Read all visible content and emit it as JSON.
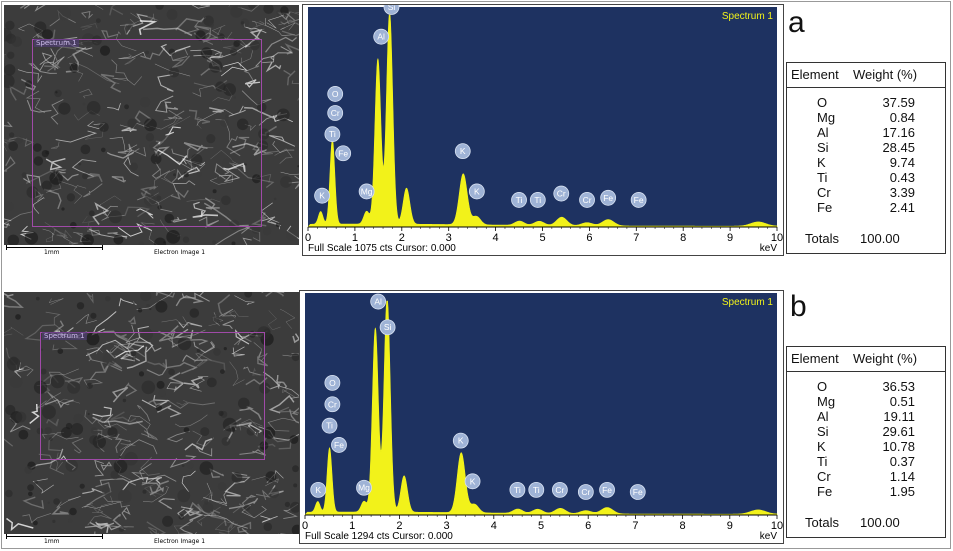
{
  "panels": [
    {
      "letter": "a",
      "roi_label": "Spectrum 1",
      "scale_label": "1mm",
      "image_label": "Electron Image 1",
      "spectrum_title": "Spectrum 1",
      "footer": "Full Scale 1075 cts Cursor: 0.000",
      "unit": "keV",
      "table": {
        "col1": "Element",
        "col2": "Weight (%)",
        "rows": [
          {
            "el": "O",
            "w": "37.59"
          },
          {
            "el": "Mg",
            "w": "0.84"
          },
          {
            "el": "Al",
            "w": "17.16"
          },
          {
            "el": "Si",
            "w": "28.45"
          },
          {
            "el": "K",
            "w": "9.74"
          },
          {
            "el": "Ti",
            "w": "0.43"
          },
          {
            "el": "Cr",
            "w": "3.39"
          },
          {
            "el": "Fe",
            "w": "2.41"
          }
        ],
        "total_label": "Totals",
        "total_value": "100.00"
      }
    },
    {
      "letter": "b",
      "roi_label": "Spectrum 1",
      "scale_label": "1mm",
      "image_label": "Electron Image 1",
      "spectrum_title": "Spectrum 1",
      "footer": "Full Scale 1294 cts Cursor: 0.000",
      "unit": "keV",
      "table": {
        "col1": "Element",
        "col2": "Weight (%)",
        "rows": [
          {
            "el": "O",
            "w": "36.53"
          },
          {
            "el": "Mg",
            "w": "0.51"
          },
          {
            "el": "Al",
            "w": "19.11"
          },
          {
            "el": "Si",
            "w": "29.61"
          },
          {
            "el": "K",
            "w": "10.78"
          },
          {
            "el": "Ti",
            "w": "0.37"
          },
          {
            "el": "Cr",
            "w": "1.14"
          },
          {
            "el": "Fe",
            "w": "1.95"
          }
        ],
        "total_label": "Totals",
        "total_value": "100.00"
      }
    }
  ],
  "colors": {
    "plot_bg": "#1e3261",
    "peak": "#f2f21a",
    "label_circle": "#9fb3d6",
    "roi": "#a04aa8"
  },
  "chart_data": [
    {
      "type": "area",
      "x_ticks": [
        "0",
        "1",
        "2",
        "3",
        "4",
        "5",
        "6",
        "7",
        "8",
        "9",
        "10"
      ],
      "xlim": [
        0,
        10
      ],
      "peaks": [
        {
          "e": 0.27,
          "h": 0.06
        },
        {
          "e": 0.52,
          "h": 0.4
        },
        {
          "e": 1.25,
          "h": 0.06
        },
        {
          "e": 1.49,
          "h": 0.78
        },
        {
          "e": 1.74,
          "h": 1.0
        },
        {
          "e": 2.1,
          "h": 0.17
        },
        {
          "e": 3.31,
          "h": 0.24
        },
        {
          "e": 3.59,
          "h": 0.04
        },
        {
          "e": 4.51,
          "h": 0.02
        },
        {
          "e": 4.93,
          "h": 0.02
        },
        {
          "e": 5.41,
          "h": 0.04
        },
        {
          "e": 5.95,
          "h": 0.015
        },
        {
          "e": 6.4,
          "h": 0.03
        },
        {
          "e": 9.6,
          "h": 0.02
        }
      ],
      "labels": [
        {
          "t": "O",
          "e": 0.58,
          "lvl": 0.59
        },
        {
          "t": "Cr",
          "e": 0.58,
          "lvl": 0.5
        },
        {
          "t": "Ti",
          "e": 0.52,
          "lvl": 0.4
        },
        {
          "t": "Fe",
          "e": 0.75,
          "lvl": 0.31
        },
        {
          "t": "K",
          "e": 0.3,
          "lvl": 0.11
        },
        {
          "t": "Mg",
          "e": 1.25,
          "lvl": 0.13
        },
        {
          "t": "Al",
          "e": 1.56,
          "lvl": 0.86
        },
        {
          "t": "Si",
          "e": 1.78,
          "lvl": 1.0
        },
        {
          "t": "K",
          "e": 3.3,
          "lvl": 0.32
        },
        {
          "t": "K",
          "e": 3.6,
          "lvl": 0.13
        },
        {
          "t": "Ti",
          "e": 4.5,
          "lvl": 0.09
        },
        {
          "t": "Ti",
          "e": 4.9,
          "lvl": 0.09
        },
        {
          "t": "Cr",
          "e": 5.4,
          "lvl": 0.12
        },
        {
          "t": "Cr",
          "e": 5.95,
          "lvl": 0.09
        },
        {
          "t": "Fe",
          "e": 6.4,
          "lvl": 0.1
        },
        {
          "t": "Fe",
          "e": 7.05,
          "lvl": 0.09
        }
      ]
    },
    {
      "type": "area",
      "x_ticks": [
        "0",
        "1",
        "2",
        "3",
        "4",
        "5",
        "6",
        "7",
        "8",
        "9",
        "10"
      ],
      "xlim": [
        0,
        10
      ],
      "peaks": [
        {
          "e": 0.27,
          "h": 0.05
        },
        {
          "e": 0.52,
          "h": 0.3
        },
        {
          "e": 1.25,
          "h": 0.05
        },
        {
          "e": 1.49,
          "h": 0.86
        },
        {
          "e": 1.74,
          "h": 1.0
        },
        {
          "e": 2.1,
          "h": 0.17
        },
        {
          "e": 3.31,
          "h": 0.28
        },
        {
          "e": 3.59,
          "h": 0.04
        },
        {
          "e": 4.51,
          "h": 0.02
        },
        {
          "e": 4.93,
          "h": 0.02
        },
        {
          "e": 5.41,
          "h": 0.025
        },
        {
          "e": 5.95,
          "h": 0.015
        },
        {
          "e": 6.4,
          "h": 0.03
        },
        {
          "e": 9.6,
          "h": 0.02
        }
      ],
      "labels": [
        {
          "t": "O",
          "e": 0.58,
          "lvl": 0.58
        },
        {
          "t": "Cr",
          "e": 0.58,
          "lvl": 0.48
        },
        {
          "t": "Ti",
          "e": 0.52,
          "lvl": 0.38
        },
        {
          "t": "Fe",
          "e": 0.72,
          "lvl": 0.29
        },
        {
          "t": "K",
          "e": 0.28,
          "lvl": 0.08
        },
        {
          "t": "Mg",
          "e": 1.25,
          "lvl": 0.09
        },
        {
          "t": "Al",
          "e": 1.55,
          "lvl": 0.96
        },
        {
          "t": "Si",
          "e": 1.75,
          "lvl": 0.84
        },
        {
          "t": "K",
          "e": 3.3,
          "lvl": 0.31
        },
        {
          "t": "K",
          "e": 3.55,
          "lvl": 0.12
        },
        {
          "t": "Ti",
          "e": 4.5,
          "lvl": 0.08
        },
        {
          "t": "Ti",
          "e": 4.9,
          "lvl": 0.08
        },
        {
          "t": "Cr",
          "e": 5.4,
          "lvl": 0.08
        },
        {
          "t": "Cr",
          "e": 5.95,
          "lvl": 0.07
        },
        {
          "t": "Fe",
          "e": 6.4,
          "lvl": 0.08
        },
        {
          "t": "Fe",
          "e": 7.05,
          "lvl": 0.07
        }
      ]
    }
  ]
}
